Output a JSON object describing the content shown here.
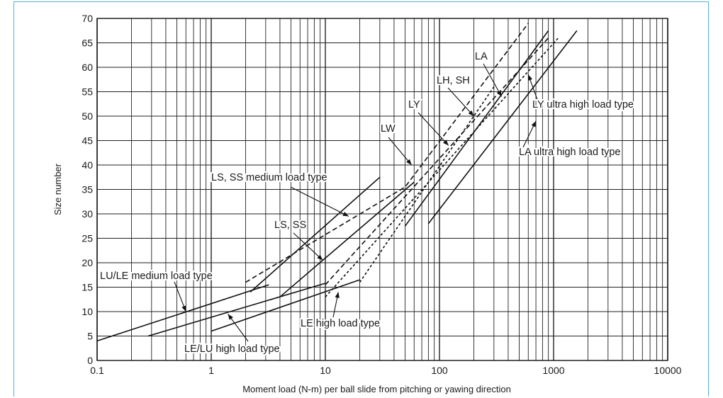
{
  "chart_data": {
    "type": "line",
    "xlabel": "Moment load (N-m) per ball slide from pitching or yawing direction",
    "ylabel": "Size number",
    "xscale": "log",
    "xlim": [
      0.1,
      10000
    ],
    "ylim": [
      0,
      70
    ],
    "xticks": [
      "0.1",
      "1",
      "10",
      "100",
      "1000",
      "10000"
    ],
    "yticks": [
      "0",
      "5",
      "10",
      "15",
      "20",
      "25",
      "30",
      "35",
      "40",
      "45",
      "50",
      "55",
      "60",
      "65",
      "70"
    ],
    "grid": true,
    "series": [
      {
        "name": "LU/LE medium load type",
        "style": "solid",
        "points": [
          [
            0.1,
            4
          ],
          [
            3.2,
            15.5
          ]
        ]
      },
      {
        "name": "LE/LU high load type",
        "style": "solid",
        "points": [
          [
            0.28,
            5
          ],
          [
            10,
            15.8
          ]
        ]
      },
      {
        "name": "LE high load type",
        "style": "solid",
        "points": [
          [
            1,
            6
          ],
          [
            20,
            16.5
          ]
        ]
      },
      {
        "name": "LS, SS medium load type",
        "style": "solid",
        "points": [
          [
            2.2,
            14
          ],
          [
            30,
            37.5
          ]
        ]
      },
      {
        "name": "LS, SS",
        "style": "solid",
        "points": [
          [
            4,
            13
          ],
          [
            60,
            36.5
          ]
        ]
      },
      {
        "name": "LH, SH",
        "style": "solid",
        "points": [
          [
            50,
            27.5
          ],
          [
            900,
            67.5
          ]
        ]
      },
      {
        "name": "LA ultra high load type",
        "style": "solid",
        "points": [
          [
            80,
            28
          ],
          [
            1600,
            67.5
          ]
        ]
      },
      {
        "name": "LW",
        "style": "dashed",
        "points": [
          [
            2,
            16
          ],
          [
            50,
            35.5
          ],
          [
            600,
            69
          ]
        ]
      },
      {
        "name": "LY",
        "style": "dashed-fine",
        "points": [
          [
            20,
            16
          ],
          [
            300,
            56
          ]
        ]
      },
      {
        "name": "LA",
        "style": "dashed",
        "points": [
          [
            10,
            15.5
          ],
          [
            900,
            66
          ]
        ]
      },
      {
        "name": "LY ultra high load type",
        "style": "dashed-fine",
        "points": [
          [
            10,
            13
          ],
          [
            1100,
            66
          ]
        ]
      }
    ],
    "annotations": [
      {
        "text": "LU/LE medium load type",
        "target": [
          0.6,
          10
        ]
      },
      {
        "text": "LE/LU high load type",
        "target": [
          1.4,
          9.5
        ]
      },
      {
        "text": "LE high load type",
        "target": [
          13,
          14
        ]
      },
      {
        "text": "LS, SS medium load type",
        "target": [
          16,
          29.5
        ]
      },
      {
        "text": "LS, SS",
        "target": [
          9.5,
          20.5
        ]
      },
      {
        "text": "LW",
        "target": [
          57,
          40
        ]
      },
      {
        "text": "LY",
        "target": [
          120,
          44
        ]
      },
      {
        "text": "LH, SH",
        "target": [
          200,
          50
        ]
      },
      {
        "text": "LA",
        "target": [
          350,
          54
        ]
      },
      {
        "text": "LY ultra high load type",
        "target": [
          600,
          58.5
        ]
      },
      {
        "text": "LA ultra high load type",
        "target": [
          700,
          49
        ]
      }
    ]
  }
}
